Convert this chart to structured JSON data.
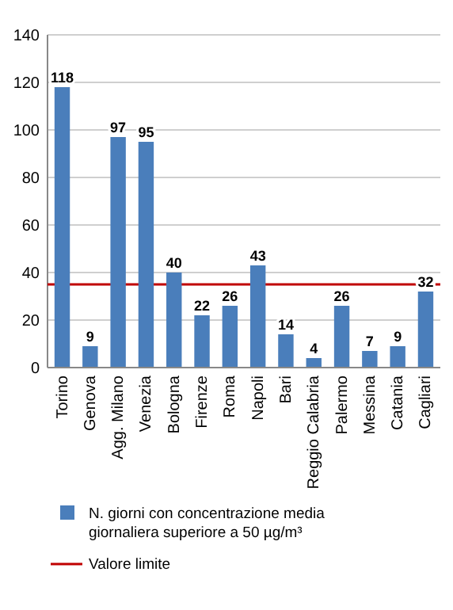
{
  "chart_data": {
    "type": "bar",
    "categories": [
      "Torino",
      "Genova",
      "Agg. Milano",
      "Venezia",
      "Bologna",
      "Firenze",
      "Roma",
      "Napoli",
      "Bari",
      "Reggio Calabria",
      "Palermo",
      "Messina",
      "Catania",
      "Cagliari"
    ],
    "series": [
      {
        "name": "N. giorni con concentrazione media giornaliera superiore a 50 µg/m³",
        "color": "#4a7ebb",
        "values": [
          118,
          9,
          97,
          95,
          40,
          22,
          26,
          43,
          14,
          4,
          26,
          7,
          9,
          32
        ]
      }
    ],
    "ylim": [
      0,
      140
    ],
    "yticks": [
      0,
      20,
      40,
      60,
      80,
      100,
      120,
      140
    ],
    "grid": "y",
    "data_labels": true,
    "legend": "bottom",
    "ref_lines": [
      {
        "axis": "y",
        "value": 35,
        "label": "Valore limite",
        "color": "#c00000"
      }
    ]
  }
}
